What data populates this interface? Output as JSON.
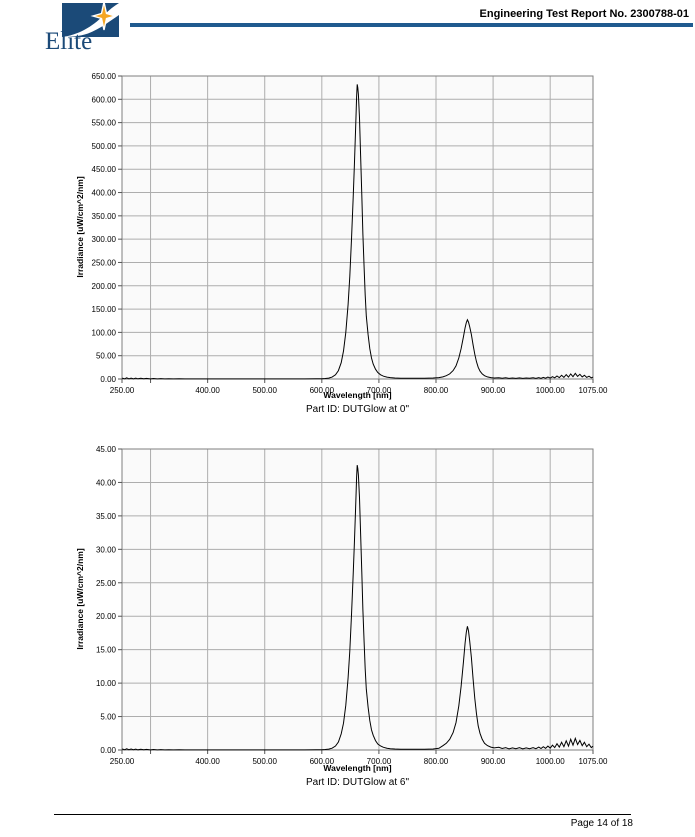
{
  "header": {
    "logo_text": "Elite",
    "report_title": "Engineering Test Report No. 2300788-01",
    "colors": {
      "navy": "#1b4a78",
      "rule_blue": "#1f5a8f",
      "star_gold": "#f5a623"
    }
  },
  "footer": {
    "page_label": "Page 14 of 18"
  },
  "chart_data": [
    {
      "type": "line",
      "title": "",
      "xlabel": "Wavelength [nm]",
      "ylabel": "Irradiance [uW/cm^2/nm]",
      "caption": "Part ID: DUTGlow at 0\"",
      "xlim": [
        250,
        1075
      ],
      "ylim": [
        0,
        650
      ],
      "ytick_step": 50,
      "xticks_labeled": [
        250,
        400,
        500,
        600,
        700,
        800,
        900,
        1000,
        1075
      ],
      "xticks_unlabeled": [
        300
      ],
      "grid": true,
      "legend": "none",
      "line_color": "#000000",
      "grid_color": "#adadad",
      "border_color": "#7f7f7f",
      "plot_bg": "#fafafa",
      "series": [
        {
          "name": "irradiance",
          "points": [
            [
              250,
              2
            ],
            [
              255,
              0.5
            ],
            [
              258,
              2.5
            ],
            [
              262,
              0.5
            ],
            [
              266,
              2
            ],
            [
              270,
              0.5
            ],
            [
              274,
              1.8
            ],
            [
              278,
              0.4
            ],
            [
              283,
              1.5
            ],
            [
              288,
              0.4
            ],
            [
              293,
              1.2
            ],
            [
              300,
              0.3
            ],
            [
              305,
              1
            ],
            [
              312,
              0.3
            ],
            [
              318,
              0.8
            ],
            [
              325,
              0.3
            ],
            [
              332,
              0.7
            ],
            [
              340,
              0.3
            ],
            [
              350,
              0.5
            ],
            [
              360,
              0.2
            ],
            [
              375,
              0.3
            ],
            [
              400,
              0.2
            ],
            [
              430,
              0.3
            ],
            [
              460,
              0.2
            ],
            [
              500,
              0.3
            ],
            [
              540,
              0.2
            ],
            [
              570,
              0.3
            ],
            [
              590,
              0.4
            ],
            [
              600,
              0.6
            ],
            [
              606,
              1
            ],
            [
              612,
              2
            ],
            [
              618,
              4
            ],
            [
              624,
              9
            ],
            [
              629,
              18
            ],
            [
              634,
              35
            ],
            [
              638,
              60
            ],
            [
              642,
              100
            ],
            [
              646,
              160
            ],
            [
              649,
              220
            ],
            [
              652,
              300
            ],
            [
              655,
              390
            ],
            [
              657,
              460
            ],
            [
              659,
              530
            ],
            [
              660,
              570
            ],
            [
              661,
              605
            ],
            [
              662,
              632
            ],
            [
              663,
              625
            ],
            [
              664,
              610
            ],
            [
              666,
              560
            ],
            [
              668,
              480
            ],
            [
              670,
              395
            ],
            [
              672,
              310
            ],
            [
              674,
              240
            ],
            [
              676,
              180
            ],
            [
              678,
              135
            ],
            [
              681,
              95
            ],
            [
              684,
              65
            ],
            [
              687,
              45
            ],
            [
              690,
              32
            ],
            [
              694,
              21
            ],
            [
              698,
              14
            ],
            [
              703,
              9
            ],
            [
              708,
              6
            ],
            [
              714,
              4
            ],
            [
              720,
              3
            ],
            [
              728,
              2.2
            ],
            [
              738,
              1.8
            ],
            [
              750,
              1.5
            ],
            [
              765,
              1.5
            ],
            [
              780,
              1.8
            ],
            [
              795,
              2.2
            ],
            [
              805,
              3
            ],
            [
              812,
              4.5
            ],
            [
              818,
              7
            ],
            [
              824,
              11
            ],
            [
              830,
              18
            ],
            [
              835,
              28
            ],
            [
              840,
              45
            ],
            [
              844,
              65
            ],
            [
              848,
              90
            ],
            [
              851,
              110
            ],
            [
              853,
              121
            ],
            [
              855,
              127
            ],
            [
              857,
              122
            ],
            [
              859,
              112
            ],
            [
              862,
              95
            ],
            [
              865,
              73
            ],
            [
              868,
              53
            ],
            [
              871,
              37
            ],
            [
              874,
              25
            ],
            [
              877,
              17
            ],
            [
              881,
              11
            ],
            [
              885,
              7
            ],
            [
              890,
              4.5
            ],
            [
              896,
              3
            ],
            [
              902,
              2.2
            ],
            [
              910,
              2.8
            ],
            [
              916,
              1.5
            ],
            [
              922,
              2.5
            ],
            [
              928,
              1.2
            ],
            [
              934,
              2.2
            ],
            [
              940,
              1.3
            ],
            [
              946,
              2.4
            ],
            [
              952,
              1.2
            ],
            [
              958,
              2.2
            ],
            [
              964,
              1.4
            ],
            [
              970,
              2.5
            ],
            [
              975,
              1.3
            ],
            [
              980,
              3
            ],
            [
              984,
              1.5
            ],
            [
              988,
              3.5
            ],
            [
              992,
              1.8
            ],
            [
              996,
              4
            ],
            [
              1000,
              2
            ],
            [
              1004,
              5
            ],
            [
              1008,
              2.5
            ],
            [
              1012,
              6.5
            ],
            [
              1016,
              3
            ],
            [
              1020,
              8
            ],
            [
              1024,
              3.5
            ],
            [
              1028,
              9.5
            ],
            [
              1032,
              4
            ],
            [
              1036,
              11
            ],
            [
              1040,
              5
            ],
            [
              1044,
              12
            ],
            [
              1048,
              5.5
            ],
            [
              1052,
              10
            ],
            [
              1056,
              4.5
            ],
            [
              1060,
              8
            ],
            [
              1064,
              3.5
            ],
            [
              1068,
              6
            ],
            [
              1072,
              2.5
            ],
            [
              1075,
              4
            ]
          ]
        }
      ]
    },
    {
      "type": "line",
      "title": "",
      "xlabel": "Wavelength [nm]",
      "ylabel": "Irradiance [uW/cm^2/nm]",
      "caption": "Part ID: DUTGlow at 6\"",
      "xlim": [
        250,
        1075
      ],
      "ylim": [
        0,
        45
      ],
      "ytick_step": 5,
      "xticks_labeled": [
        250,
        400,
        500,
        600,
        700,
        800,
        900,
        1000,
        1075
      ],
      "xticks_unlabeled": [
        300
      ],
      "grid": true,
      "legend": "none",
      "line_color": "#000000",
      "grid_color": "#adadad",
      "border_color": "#7f7f7f",
      "plot_bg": "#fafafa",
      "series": [
        {
          "name": "irradiance",
          "points": [
            [
              250,
              0.15
            ],
            [
              255,
              0.04
            ],
            [
              258,
              0.18
            ],
            [
              262,
              0.04
            ],
            [
              266,
              0.15
            ],
            [
              270,
              0.04
            ],
            [
              274,
              0.13
            ],
            [
              278,
              0.03
            ],
            [
              283,
              0.11
            ],
            [
              288,
              0.03
            ],
            [
              293,
              0.09
            ],
            [
              300,
              0.02
            ],
            [
              305,
              0.07
            ],
            [
              312,
              0.02
            ],
            [
              318,
              0.06
            ],
            [
              325,
              0.02
            ],
            [
              332,
              0.05
            ],
            [
              340,
              0.02
            ],
            [
              350,
              0.04
            ],
            [
              360,
              0.015
            ],
            [
              375,
              0.02
            ],
            [
              400,
              0.015
            ],
            [
              430,
              0.02
            ],
            [
              460,
              0.015
            ],
            [
              500,
              0.02
            ],
            [
              540,
              0.015
            ],
            [
              570,
              0.02
            ],
            [
              590,
              0.03
            ],
            [
              600,
              0.04
            ],
            [
              606,
              0.07
            ],
            [
              612,
              0.14
            ],
            [
              618,
              0.27
            ],
            [
              624,
              0.6
            ],
            [
              629,
              1.2
            ],
            [
              634,
              2.4
            ],
            [
              638,
              4
            ],
            [
              642,
              6.7
            ],
            [
              646,
              10.8
            ],
            [
              649,
              14.8
            ],
            [
              652,
              20.2
            ],
            [
              655,
              26.3
            ],
            [
              657,
              31
            ],
            [
              659,
              35.7
            ],
            [
              660,
              38.4
            ],
            [
              661,
              40.8
            ],
            [
              662,
              42.6
            ],
            [
              663,
              42.1
            ],
            [
              664,
              41.1
            ],
            [
              666,
              37.7
            ],
            [
              668,
              32.4
            ],
            [
              670,
              26.6
            ],
            [
              672,
              20.9
            ],
            [
              674,
              16.2
            ],
            [
              676,
              12.1
            ],
            [
              678,
              9.1
            ],
            [
              681,
              6.4
            ],
            [
              684,
              4.4
            ],
            [
              687,
              3
            ],
            [
              690,
              2.2
            ],
            [
              694,
              1.4
            ],
            [
              698,
              0.9
            ],
            [
              703,
              0.6
            ],
            [
              708,
              0.4
            ],
            [
              714,
              0.27
            ],
            [
              720,
              0.2
            ],
            [
              728,
              0.15
            ],
            [
              738,
              0.12
            ],
            [
              750,
              0.1
            ],
            [
              765,
              0.1
            ],
            [
              780,
              0.12
            ],
            [
              795,
              0.15
            ],
            [
              805,
              0.25
            ],
            [
              812,
              0.65
            ],
            [
              818,
              1
            ],
            [
              824,
              1.6
            ],
            [
              830,
              2.6
            ],
            [
              835,
              4.1
            ],
            [
              840,
              6.6
            ],
            [
              844,
              9.5
            ],
            [
              848,
              13.1
            ],
            [
              851,
              16
            ],
            [
              853,
              17.6
            ],
            [
              855,
              18.5
            ],
            [
              857,
              17.8
            ],
            [
              859,
              16.3
            ],
            [
              862,
              13.8
            ],
            [
              865,
              10.6
            ],
            [
              868,
              7.7
            ],
            [
              871,
              5.4
            ],
            [
              874,
              3.6
            ],
            [
              877,
              2.5
            ],
            [
              881,
              1.6
            ],
            [
              885,
              1
            ],
            [
              890,
              0.66
            ],
            [
              896,
              0.44
            ],
            [
              902,
              0.32
            ],
            [
              910,
              0.4
            ],
            [
              916,
              0.22
            ],
            [
              922,
              0.36
            ],
            [
              928,
              0.17
            ],
            [
              934,
              0.32
            ],
            [
              940,
              0.19
            ],
            [
              946,
              0.35
            ],
            [
              952,
              0.17
            ],
            [
              958,
              0.32
            ],
            [
              964,
              0.2
            ],
            [
              970,
              0.36
            ],
            [
              975,
              0.19
            ],
            [
              980,
              0.44
            ],
            [
              984,
              0.22
            ],
            [
              988,
              0.5
            ],
            [
              992,
              0.26
            ],
            [
              996,
              0.58
            ],
            [
              1000,
              0.29
            ],
            [
              1004,
              0.72
            ],
            [
              1008,
              0.36
            ],
            [
              1012,
              0.94
            ],
            [
              1016,
              0.43
            ],
            [
              1020,
              1.15
            ],
            [
              1024,
              0.5
            ],
            [
              1028,
              1.37
            ],
            [
              1032,
              0.58
            ],
            [
              1036,
              1.6
            ],
            [
              1040,
              0.72
            ],
            [
              1044,
              1.73
            ],
            [
              1048,
              0.8
            ],
            [
              1052,
              1.44
            ],
            [
              1056,
              0.65
            ],
            [
              1060,
              1.15
            ],
            [
              1064,
              0.5
            ],
            [
              1068,
              0.86
            ],
            [
              1072,
              0.36
            ],
            [
              1075,
              0.58
            ]
          ]
        }
      ]
    }
  ]
}
